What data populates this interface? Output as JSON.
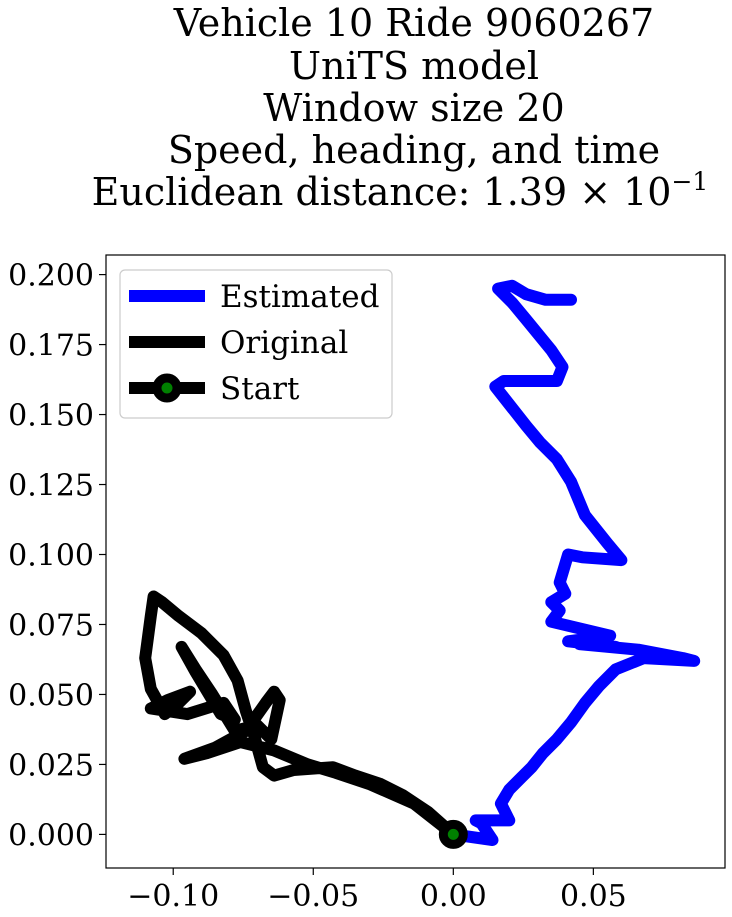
{
  "chart_data": {
    "type": "line",
    "title_lines": [
      "Vehicle 10 Ride 9060267",
      "UniTS model",
      "Window size 20",
      "Speed, heading, and time",
      "Euclidean distance: 1.39 × 10"
    ],
    "title_exponent": "−1",
    "xlim": [
      -0.124,
      0.097
    ],
    "ylim": [
      -0.012,
      0.207
    ],
    "x_ticks": [
      -0.1,
      -0.05,
      0.0,
      0.05
    ],
    "x_tick_labels": [
      "−0.10",
      "−0.05",
      "0.00",
      "0.05"
    ],
    "y_ticks": [
      0.0,
      0.025,
      0.05,
      0.075,
      0.1,
      0.125,
      0.15,
      0.175,
      0.2
    ],
    "y_tick_labels": [
      "0.000",
      "0.025",
      "0.050",
      "0.075",
      "0.100",
      "0.125",
      "0.150",
      "0.175",
      "0.200"
    ],
    "grid": false,
    "legend_position": "top-left",
    "series": [
      {
        "name": "Estimated",
        "color": "#0000ff",
        "points": [
          [
            0,
            0
          ],
          [
            0.014,
            -0.002
          ],
          [
            0.01,
            0.004
          ],
          [
            0.008,
            0.005
          ],
          [
            0.02,
            0.005
          ],
          [
            0.017,
            0.011
          ],
          [
            0.02,
            0.016
          ],
          [
            0.024,
            0.02
          ],
          [
            0.028,
            0.024
          ],
          [
            0.032,
            0.029
          ],
          [
            0.037,
            0.034
          ],
          [
            0.042,
            0.04
          ],
          [
            0.047,
            0.047
          ],
          [
            0.052,
            0.053
          ],
          [
            0.058,
            0.059
          ],
          [
            0.068,
            0.063
          ],
          [
            0.086,
            0.062
          ],
          [
            0.082,
            0.063
          ],
          [
            0.066,
            0.066
          ],
          [
            0.045,
            0.068
          ],
          [
            0.058,
            0.067
          ],
          [
            0.041,
            0.069
          ],
          [
            0.056,
            0.071
          ],
          [
            0.035,
            0.076
          ],
          [
            0.038,
            0.08
          ],
          [
            0.035,
            0.083
          ],
          [
            0.04,
            0.086
          ],
          [
            0.038,
            0.09
          ],
          [
            0.041,
            0.1
          ],
          [
            0.046,
            0.099
          ],
          [
            0.06,
            0.098
          ],
          [
            0.055,
            0.104
          ],
          [
            0.047,
            0.114
          ],
          [
            0.042,
            0.126
          ],
          [
            0.037,
            0.134
          ],
          [
            0.031,
            0.14
          ],
          [
            0.026,
            0.146
          ],
          [
            0.015,
            0.16
          ],
          [
            0.018,
            0.162
          ],
          [
            0.037,
            0.162
          ],
          [
            0.039,
            0.167
          ],
          [
            0.035,
            0.173
          ],
          [
            0.026,
            0.184
          ],
          [
            0.021,
            0.19
          ],
          [
            0.016,
            0.195
          ],
          [
            0.021,
            0.196
          ],
          [
            0.026,
            0.193
          ],
          [
            0.033,
            0.191
          ],
          [
            0.042,
            0.191
          ]
        ]
      },
      {
        "name": "Original",
        "color": "#000000",
        "points": [
          [
            0,
            0
          ],
          [
            -0.014,
            0.011
          ],
          [
            -0.03,
            0.018
          ],
          [
            -0.042,
            0.022
          ],
          [
            -0.052,
            0.025
          ],
          [
            -0.064,
            0.03
          ],
          [
            -0.076,
            0.033
          ],
          [
            -0.088,
            0.029
          ],
          [
            -0.096,
            0.027
          ],
          [
            -0.085,
            0.031
          ],
          [
            -0.074,
            0.037
          ],
          [
            -0.067,
            0.047
          ],
          [
            -0.064,
            0.051
          ],
          [
            -0.062,
            0.048
          ],
          [
            -0.065,
            0.034
          ],
          [
            -0.07,
            0.039
          ],
          [
            -0.078,
            0.037
          ],
          [
            -0.086,
            0.05
          ],
          [
            -0.092,
            0.059
          ],
          [
            -0.097,
            0.067
          ],
          [
            -0.092,
            0.058
          ],
          [
            -0.083,
            0.043
          ],
          [
            -0.078,
            0.041
          ],
          [
            -0.082,
            0.047
          ],
          [
            -0.095,
            0.043
          ],
          [
            -0.108,
            0.045
          ],
          [
            -0.102,
            0.048
          ],
          [
            -0.094,
            0.051
          ],
          [
            -0.098,
            0.047
          ],
          [
            -0.103,
            0.043
          ],
          [
            -0.108,
            0.052
          ],
          [
            -0.11,
            0.063
          ],
          [
            -0.108,
            0.078
          ],
          [
            -0.107,
            0.085
          ],
          [
            -0.104,
            0.083
          ],
          [
            -0.098,
            0.078
          ],
          [
            -0.09,
            0.072
          ],
          [
            -0.082,
            0.064
          ],
          [
            -0.077,
            0.055
          ],
          [
            -0.074,
            0.044
          ],
          [
            -0.071,
            0.035
          ],
          [
            -0.068,
            0.024
          ],
          [
            -0.064,
            0.021
          ],
          [
            -0.057,
            0.023
          ],
          [
            -0.043,
            0.024
          ],
          [
            -0.035,
            0.021
          ],
          [
            -0.026,
            0.018
          ],
          [
            -0.018,
            0.014
          ],
          [
            -0.009,
            0.008
          ],
          [
            0,
            0
          ]
        ]
      },
      {
        "name": "Start",
        "marker_face": "#008000",
        "marker_edge": "#000000",
        "x": 0,
        "y": 0
      }
    ]
  }
}
